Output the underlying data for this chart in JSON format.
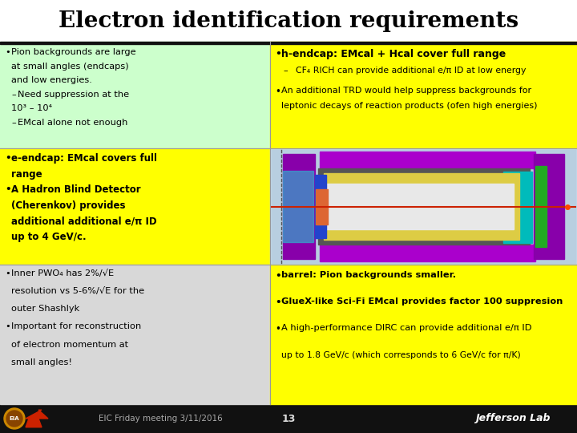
{
  "title": "Electron identification requirements",
  "background_color": "#ffffff",
  "footer_text": "EIC Friday meeting 3/11/2016",
  "footer_page": "13",
  "footer_lab": "Jefferson Lab",
  "top_left_bg": "#ccffcc",
  "mid_left_bg": "#ffff00",
  "bot_left_bg": "#d8d8d8",
  "top_right_bg": "#ffff00",
  "image_bg": "#c0d8e8",
  "bot_right_bg": "#ffff00",
  "top_left_lines": [
    [
      "•",
      "Pion backgrounds are large"
    ],
    [
      "",
      "at small angles (endcaps)"
    ],
    [
      "",
      "and low energies."
    ],
    [
      "–",
      "Need suppression at the"
    ],
    [
      "",
      "10³ – 10⁴"
    ],
    [
      "–",
      "EMcal alone not enough"
    ]
  ],
  "mid_left_lines": [
    [
      "•",
      "e-endcap: EMcal covers full"
    ],
    [
      "",
      "range"
    ],
    [
      "•",
      "A Hadron Blind Detector"
    ],
    [
      "",
      "(Cherenkov) provides"
    ],
    [
      "",
      "additional additional e/π ID"
    ],
    [
      "",
      "up to 4 GeV/c."
    ]
  ],
  "bot_left_lines": [
    [
      "•",
      "Inner PWO₄ has 2%/√E"
    ],
    [
      "",
      "resolution vs 5-6%/√E for the"
    ],
    [
      "",
      "outer Shashlyk"
    ],
    [
      "•",
      "Important for reconstruction"
    ],
    [
      "",
      "of electron momentum at"
    ],
    [
      "",
      "small angles!"
    ]
  ],
  "top_right_bullet1": "h-endcap: EMcal + Hcal cover full range",
  "top_right_sub1": "CF₄ RICH can provide additional e/π ID at low energy",
  "top_right_bullet2": "An additional TRD would help suppress backgrounds for",
  "top_right_bullet2b": "leptonic decays of reaction products (ofen high energies)",
  "bot_right_lines": [
    "barrel: Pion backgrounds smaller.",
    "GlueX-like Sci-Fi EMcal provides factor 100 suppresion",
    "A high-performance DIRC can provide additional e/π ID",
    "up to 1.8 GeV/c (which corresponds to 6 GeV/c for π/K)"
  ]
}
